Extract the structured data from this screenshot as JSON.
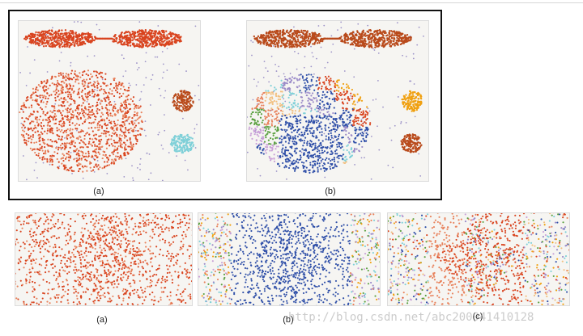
{
  "top_panels": {
    "a": {
      "label": "(a)"
    },
    "b": {
      "label": "(b)"
    }
  },
  "bottom_panels": {
    "a": {
      "label": "(a)"
    },
    "b": {
      "label": "(b)"
    },
    "c": {
      "label": "(c)"
    }
  },
  "watermark": "http://blog.csdn.net/abc200941410128",
  "colors": {
    "red": "#d9441f",
    "rust": "#b94a1b",
    "salmon": "#e8825c",
    "orange": "#f0a010",
    "teal": "#7fd0d8",
    "blue": "#2f4fa8",
    "purple": "#9a8ac8",
    "green": "#5aa040",
    "noise": "#9d93c8"
  }
}
